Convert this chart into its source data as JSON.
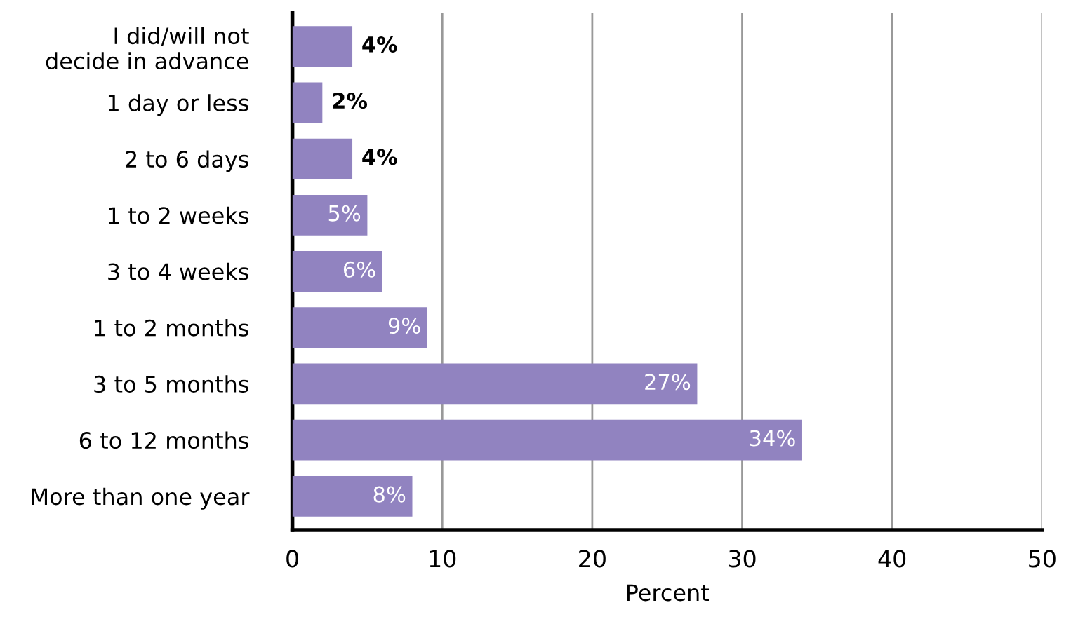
{
  "chart_data": {
    "type": "bar",
    "orientation": "horizontal",
    "xlabel": "Percent",
    "categories": [
      "I did/will not\ndecide in advance",
      "1 day or less",
      "2 to 6 days",
      "1 to 2 weeks",
      "3 to 4 weeks",
      "1 to 2 months",
      "3 to 5 months",
      "6 to 12 months",
      "More than one year"
    ],
    "values": [
      4,
      2,
      4,
      5,
      6,
      9,
      27,
      34,
      8
    ],
    "value_labels": [
      "4%",
      "2%",
      "4%",
      "5%",
      "6%",
      "9%",
      "27%",
      "34%",
      "8%"
    ],
    "color": "#9183c0",
    "xlim": [
      0,
      50
    ],
    "xticks": [
      0,
      10,
      20,
      30,
      40,
      50
    ],
    "grid": "x"
  }
}
